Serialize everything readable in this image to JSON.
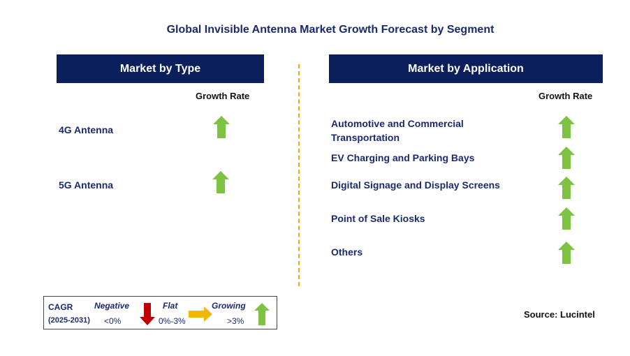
{
  "title": "Global Invisible Antenna Market Growth Forecast by Segment",
  "type_panel": {
    "header": "Market by Type",
    "growth_rate_label": "Growth Rate",
    "items": [
      {
        "label": "4G Antenna",
        "trend": "growing"
      },
      {
        "label": "5G Antenna",
        "trend": "growing"
      }
    ]
  },
  "application_panel": {
    "header": "Market by Application",
    "growth_rate_label": "Growth Rate",
    "items": [
      {
        "label": "Automotive and Commercial Transportation",
        "trend": "growing"
      },
      {
        "label": "EV Charging and Parking Bays",
        "trend": "growing"
      },
      {
        "label": "Digital Signage and Display Screens",
        "trend": "growing"
      },
      {
        "label": "Point of Sale Kiosks",
        "trend": "growing"
      },
      {
        "label": "Others",
        "trend": "growing"
      }
    ]
  },
  "legend": {
    "cagr_label": "CAGR",
    "period": "(2025-2031)",
    "negative_label": "Negative",
    "negative_range": "<0%",
    "flat_label": "Flat",
    "flat_range": "0%-3%",
    "growing_label": "Growing",
    "growing_range": ">3%"
  },
  "source": "Source: Lucintel",
  "colors": {
    "header_bg": "#0b1f5c",
    "growing": "#7dc242",
    "flat": "#f2b705",
    "negative": "#c00000",
    "divider": "#f2a900"
  }
}
